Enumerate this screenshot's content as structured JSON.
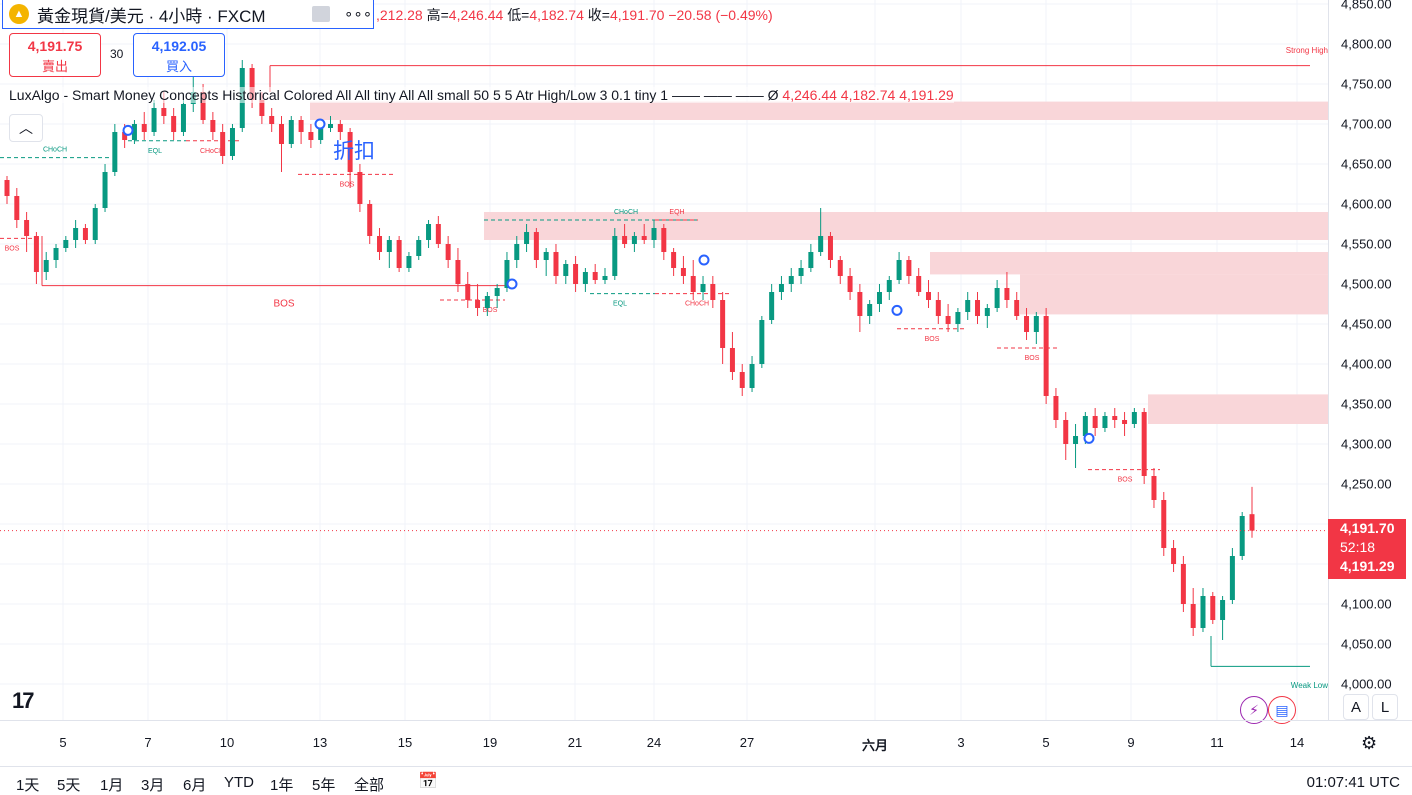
{
  "header": {
    "symbol_title": "黃金現貨/美元 · 4小時 · FXCM",
    "menu_icon": "more-dots-icon",
    "ohlc_open_tail": ",212.28",
    "high_label": "高=",
    "high_value": "4,246.44",
    "low_label": "低=",
    "low_value": "4,182.74",
    "close_label": "收=",
    "close_value": "4,191.70",
    "change": "−20.58 (−0.49%)"
  },
  "trade": {
    "sell_price": "4,191.75",
    "sell_label": "賣出",
    "spread": "30",
    "buy_price": "4,192.05",
    "buy_label": "買入"
  },
  "indicator": {
    "name": "LuxAlgo - Smart Money Concepts Historical Colored All All tiny All All small 50 5 5 Atr High/Low 3 0.1 tiny 1 —— —— ——",
    "eye_symbol": "Ø",
    "values": "4,246.44 4,182.74 4,191.29"
  },
  "chart_annotations": {
    "discount_label": "折扣",
    "strong_high": "Strong High",
    "weak_low": "Weak Low",
    "bos": "BOS",
    "choch": "CHoCH",
    "eql": "EQL",
    "eqh": "EQH"
  },
  "price_scale": {
    "ticks": [
      "4,850.00",
      "4,800.00",
      "4,750.00",
      "4,700.00",
      "4,650.00",
      "4,600.00",
      "4,550.00",
      "4,500.00",
      "4,450.00",
      "4,400.00",
      "4,350.00",
      "4,300.00",
      "4,250.00",
      "4,200.00",
      "4,150.00",
      "4,100.00",
      "4,050.00",
      "4,000.00"
    ],
    "current_price": "4,191.70",
    "countdown": "52:18",
    "indicator_price": "4,191.29"
  },
  "time_scale": {
    "ticks": [
      "5",
      "7",
      "10",
      "13",
      "15",
      "19",
      "21",
      "24",
      "27",
      "六月",
      "3",
      "5",
      "9",
      "11",
      "14"
    ],
    "bold_tick": "六月"
  },
  "bottom_bar": {
    "ranges": [
      "1天",
      "5天",
      "1月",
      "3月",
      "6月",
      "YTD",
      "1年",
      "5年",
      "全部"
    ],
    "clock": "01:07:41 UTC"
  },
  "buttons": {
    "auto_label": "A",
    "log_label": "L"
  },
  "colors": {
    "up": "#089981",
    "down": "#f23645",
    "zone": "#f9d6d9",
    "accent": "#2962ff"
  },
  "chart_data": {
    "type": "candlestick",
    "symbol": "XAUUSD",
    "timeframe": "4h",
    "ylim": [
      4000,
      4850
    ],
    "candles_ohlc": [
      [
        4630,
        4635,
        4600,
        4610
      ],
      [
        4610,
        4620,
        4570,
        4580
      ],
      [
        4580,
        4590,
        4540,
        4560
      ],
      [
        4560,
        4565,
        4500,
        4515
      ],
      [
        4515,
        4540,
        4505,
        4530
      ],
      [
        4530,
        4550,
        4520,
        4545
      ],
      [
        4545,
        4560,
        4540,
        4555
      ],
      [
        4555,
        4580,
        4545,
        4570
      ],
      [
        4570,
        4575,
        4550,
        4555
      ],
      [
        4555,
        4600,
        4550,
        4595
      ],
      [
        4595,
        4650,
        4590,
        4640
      ],
      [
        4640,
        4700,
        4635,
        4690
      ],
      [
        4690,
        4700,
        4670,
        4680
      ],
      [
        4680,
        4705,
        4675,
        4700
      ],
      [
        4700,
        4715,
        4680,
        4690
      ],
      [
        4690,
        4730,
        4685,
        4720
      ],
      [
        4720,
        4740,
        4700,
        4710
      ],
      [
        4710,
        4720,
        4680,
        4690
      ],
      [
        4690,
        4735,
        4685,
        4725
      ],
      [
        4725,
        4760,
        4715,
        4740
      ],
      [
        4740,
        4750,
        4700,
        4705
      ],
      [
        4705,
        4715,
        4680,
        4690
      ],
      [
        4690,
        4700,
        4650,
        4660
      ],
      [
        4660,
        4700,
        4655,
        4695
      ],
      [
        4695,
        4780,
        4690,
        4770
      ],
      [
        4770,
        4775,
        4720,
        4730
      ],
      [
        4730,
        4740,
        4700,
        4710
      ],
      [
        4710,
        4720,
        4690,
        4700
      ],
      [
        4700,
        4710,
        4640,
        4675
      ],
      [
        4675,
        4710,
        4670,
        4705
      ],
      [
        4705,
        4710,
        4675,
        4690
      ],
      [
        4690,
        4700,
        4670,
        4680
      ],
      [
        4680,
        4700,
        4675,
        4695
      ],
      [
        4695,
        4710,
        4690,
        4700
      ],
      [
        4700,
        4705,
        4680,
        4690
      ],
      [
        4690,
        4695,
        4620,
        4640
      ],
      [
        4640,
        4650,
        4590,
        4600
      ],
      [
        4600,
        4605,
        4550,
        4560
      ],
      [
        4560,
        4570,
        4530,
        4540
      ],
      [
        4540,
        4560,
        4520,
        4555
      ],
      [
        4555,
        4560,
        4515,
        4520
      ],
      [
        4520,
        4540,
        4515,
        4535
      ],
      [
        4535,
        4560,
        4530,
        4555
      ],
      [
        4555,
        4580,
        4545,
        4575
      ],
      [
        4575,
        4585,
        4545,
        4550
      ],
      [
        4550,
        4560,
        4520,
        4530
      ],
      [
        4530,
        4545,
        4490,
        4500
      ],
      [
        4500,
        4515,
        4470,
        4480
      ],
      [
        4480,
        4500,
        4460,
        4470
      ],
      [
        4470,
        4490,
        4460,
        4485
      ],
      [
        4485,
        4500,
        4470,
        4495
      ],
      [
        4495,
        4540,
        4490,
        4530
      ],
      [
        4530,
        4560,
        4520,
        4550
      ],
      [
        4550,
        4575,
        4540,
        4565
      ],
      [
        4565,
        4570,
        4520,
        4530
      ],
      [
        4530,
        4545,
        4510,
        4540
      ],
      [
        4540,
        4550,
        4500,
        4510
      ],
      [
        4510,
        4530,
        4500,
        4525
      ],
      [
        4525,
        4535,
        4490,
        4500
      ],
      [
        4500,
        4520,
        4490,
        4515
      ],
      [
        4515,
        4525,
        4500,
        4505
      ],
      [
        4505,
        4520,
        4500,
        4510
      ],
      [
        4510,
        4570,
        4505,
        4560
      ],
      [
        4560,
        4575,
        4545,
        4550
      ],
      [
        4550,
        4565,
        4540,
        4560
      ],
      [
        4560,
        4575,
        4550,
        4555
      ],
      [
        4555,
        4580,
        4545,
        4570
      ],
      [
        4570,
        4575,
        4530,
        4540
      ],
      [
        4540,
        4545,
        4510,
        4520
      ],
      [
        4520,
        4535,
        4500,
        4510
      ],
      [
        4510,
        4530,
        4480,
        4490
      ],
      [
        4490,
        4510,
        4480,
        4500
      ],
      [
        4500,
        4510,
        4470,
        4480
      ],
      [
        4480,
        4490,
        4400,
        4420
      ],
      [
        4420,
        4440,
        4380,
        4390
      ],
      [
        4390,
        4400,
        4360,
        4370
      ],
      [
        4370,
        4410,
        4365,
        4400
      ],
      [
        4400,
        4460,
        4395,
        4455
      ],
      [
        4455,
        4500,
        4450,
        4490
      ],
      [
        4490,
        4510,
        4480,
        4500
      ],
      [
        4500,
        4520,
        4490,
        4510
      ],
      [
        4510,
        4530,
        4500,
        4520
      ],
      [
        4520,
        4550,
        4515,
        4540
      ],
      [
        4540,
        4595,
        4535,
        4560
      ],
      [
        4560,
        4565,
        4520,
        4530
      ],
      [
        4530,
        4535,
        4500,
        4510
      ],
      [
        4510,
        4520,
        4480,
        4490
      ],
      [
        4490,
        4500,
        4440,
        4460
      ],
      [
        4460,
        4480,
        4450,
        4475
      ],
      [
        4475,
        4500,
        4465,
        4490
      ],
      [
        4490,
        4510,
        4480,
        4505
      ],
      [
        4505,
        4540,
        4500,
        4530
      ],
      [
        4530,
        4535,
        4500,
        4510
      ],
      [
        4510,
        4520,
        4485,
        4490
      ],
      [
        4490,
        4505,
        4470,
        4480
      ],
      [
        4480,
        4490,
        4450,
        4460
      ],
      [
        4460,
        4475,
        4440,
        4450
      ],
      [
        4450,
        4470,
        4440,
        4465
      ],
      [
        4465,
        4490,
        4455,
        4480
      ],
      [
        4480,
        4490,
        4450,
        4460
      ],
      [
        4460,
        4475,
        4445,
        4470
      ],
      [
        4470,
        4505,
        4465,
        4495
      ],
      [
        4495,
        4515,
        4470,
        4480
      ],
      [
        4480,
        4490,
        4455,
        4460
      ],
      [
        4460,
        4470,
        4430,
        4440
      ],
      [
        4440,
        4465,
        4425,
        4460
      ],
      [
        4460,
        4470,
        4350,
        4360
      ],
      [
        4360,
        4370,
        4320,
        4330
      ],
      [
        4330,
        4340,
        4280,
        4300
      ],
      [
        4300,
        4325,
        4270,
        4310
      ],
      [
        4310,
        4340,
        4300,
        4335
      ],
      [
        4335,
        4345,
        4310,
        4320
      ],
      [
        4320,
        4340,
        4315,
        4335
      ],
      [
        4335,
        4345,
        4320,
        4330
      ],
      [
        4330,
        4340,
        4310,
        4325
      ],
      [
        4325,
        4345,
        4320,
        4340
      ],
      [
        4340,
        4345,
        4250,
        4260
      ],
      [
        4260,
        4270,
        4220,
        4230
      ],
      [
        4230,
        4240,
        4160,
        4170
      ],
      [
        4170,
        4180,
        4140,
        4150
      ],
      [
        4150,
        4160,
        4090,
        4100
      ],
      [
        4100,
        4120,
        4060,
        4070
      ],
      [
        4070,
        4120,
        4065,
        4110
      ],
      [
        4110,
        4115,
        4075,
        4080
      ],
      [
        4080,
        4110,
        4055,
        4105
      ],
      [
        4105,
        4170,
        4100,
        4160
      ],
      [
        4160,
        4215,
        4155,
        4210
      ],
      [
        4212.28,
        4246.44,
        4182.74,
        4191.7
      ]
    ]
  }
}
